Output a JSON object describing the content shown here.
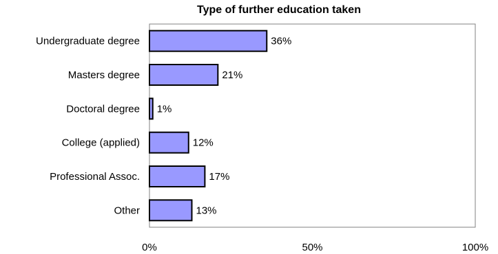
{
  "chart_data": {
    "type": "bar",
    "orientation": "horizontal",
    "title": "Type of further education taken",
    "categories": [
      "Undergraduate degree",
      "Masters degree",
      "Doctoral degree",
      "College (applied)",
      "Professional Assoc.",
      "Other"
    ],
    "values": [
      36,
      21,
      1,
      12,
      17,
      13
    ],
    "value_labels": [
      "36%",
      "21%",
      "1%",
      "12%",
      "17%",
      "13%"
    ],
    "xlim": [
      0,
      100
    ],
    "x_ticks": [
      0,
      50,
      100
    ],
    "x_tick_labels": [
      "0%",
      "50%",
      "100%"
    ],
    "xlabel": "",
    "ylabel": "",
    "grid": false,
    "legend": "none",
    "colors": {
      "bar_fill": "#9999ff",
      "bar_stroke": "#000000",
      "plot_border": "#808080"
    }
  }
}
